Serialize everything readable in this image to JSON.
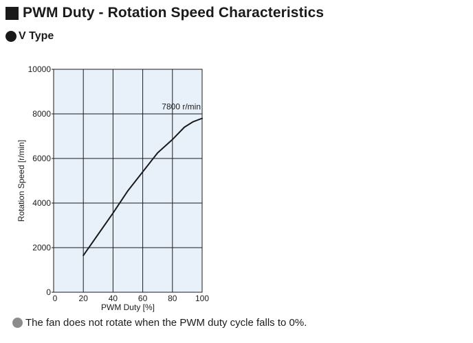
{
  "header": {
    "title": "PWM Duty - Rotation Speed Characteristics",
    "icon": "square-bullet-icon"
  },
  "section": {
    "label": "V Type",
    "icon": "circle-bullet-icon"
  },
  "footnote": {
    "text": "The fan does not rotate when the PWM duty cycle falls to 0%.",
    "icon": "gray-circle-bullet-icon"
  },
  "chart_data": {
    "type": "line",
    "xlabel": "PWM Duty [%]",
    "ylabel": "Rotation Speed [r/min]",
    "xlim": [
      0,
      100
    ],
    "ylim": [
      0,
      10000
    ],
    "x_ticks": [
      0,
      20,
      40,
      60,
      80,
      100
    ],
    "y_ticks": [
      0,
      2000,
      4000,
      6000,
      8000,
      10000
    ],
    "grid": true,
    "background_color": "#e8f0fa",
    "line_color": "#1a1a1a",
    "series": [
      {
        "x": [
          20,
          30,
          40,
          50,
          60,
          70,
          80,
          88,
          94,
          100
        ],
        "y": [
          1650,
          2600,
          3550,
          4550,
          5400,
          6250,
          6850,
          7400,
          7650,
          7800
        ]
      }
    ],
    "annotations": [
      {
        "text": "7800 r/min",
        "x": 100,
        "y": 7800
      }
    ]
  }
}
